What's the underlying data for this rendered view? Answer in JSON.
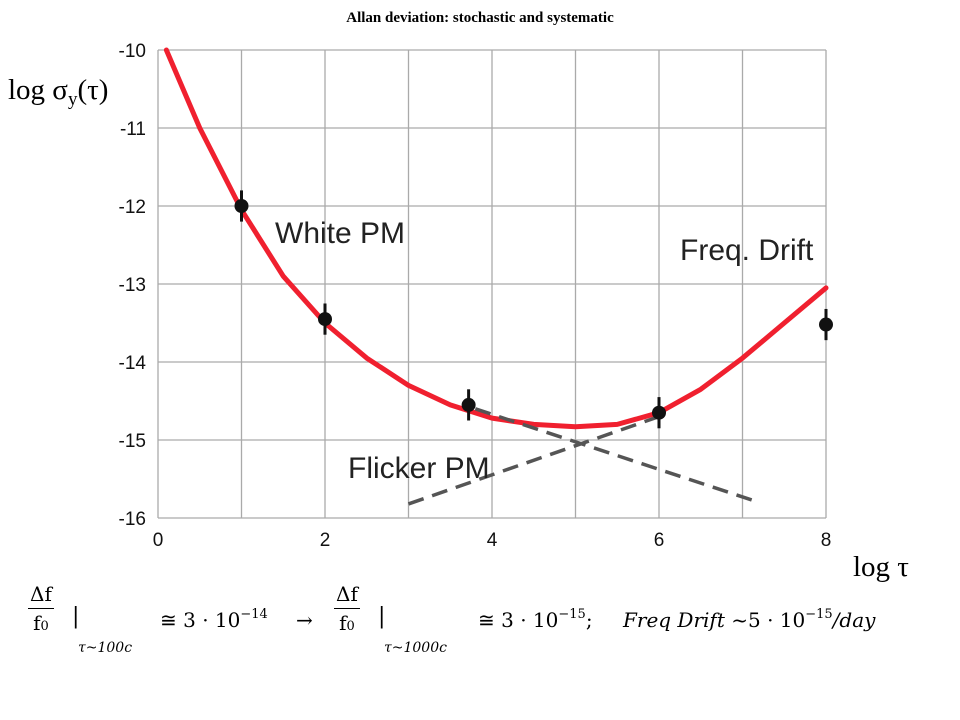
{
  "title": "Allan deviation: stochastic and systematic",
  "axis_labels": {
    "y": {
      "main": "log σ",
      "sub": "y",
      "tail": "(τ)"
    },
    "x": "log τ"
  },
  "annotations": {
    "white_pm": "White PM",
    "freq_drift": "Freq. Drift",
    "flicker_pm": "Flicker PM"
  },
  "formula": {
    "frac_num": "Δf",
    "frac_den": "f",
    "frac_den_sub": "0",
    "bar": "|",
    "eval1": "τ~100c",
    "eval2": "τ~1000c",
    "approx1_base": "≅ 3 · 10",
    "approx1_exp": "−14",
    "arrow": "→",
    "approx2_base": "≅ 3 · 10",
    "approx2_exp": "−15",
    "sep": ";",
    "drift_label": "Freq Drift",
    "drift_base": "~5 · 10",
    "drift_exp": "−15",
    "drift_unit": "/day"
  },
  "chart_data": {
    "type": "line",
    "title": "Allan deviation: stochastic and systematic",
    "xlabel": "log τ",
    "ylabel": "log σy(τ)",
    "xlim": [
      0,
      8
    ],
    "ylim": [
      -16,
      -10
    ],
    "xticks": [
      0,
      2,
      4,
      6,
      8
    ],
    "yticks": [
      -10,
      -11,
      -12,
      -13,
      -14,
      -15,
      -16
    ],
    "grid": true,
    "colors": {
      "fit": "#f0202f",
      "asymptote": "#555555",
      "points": "#111111",
      "grid": "#aaaaaa"
    },
    "series": [
      {
        "style": "solid",
        "x": [
          0.1,
          0.5,
          1.0,
          1.5,
          2.0,
          2.5,
          3.0,
          3.5,
          4.0,
          4.5,
          5.0,
          5.5,
          6.0,
          6.5,
          7.0,
          7.5,
          8.0
        ],
        "y": [
          -10.0,
          -11.0,
          -12.05,
          -12.9,
          -13.5,
          -13.95,
          -14.3,
          -14.55,
          -14.72,
          -14.8,
          -14.83,
          -14.8,
          -14.65,
          -14.35,
          -13.95,
          -13.5,
          -13.05
        ]
      },
      {
        "style": "dashed",
        "x": [
          3.8,
          7.2
        ],
        "y": [
          -14.6,
          -15.8
        ]
      },
      {
        "style": "dashed",
        "x": [
          3.0,
          6.0
        ],
        "y": [
          -15.82,
          -14.7
        ]
      },
      {
        "style": "points",
        "x": [
          1.0,
          2.0,
          3.72,
          6.0,
          8.0
        ],
        "y": [
          -12.0,
          -13.45,
          -14.55,
          -14.65,
          -13.52
        ],
        "err": [
          0.2,
          0.2,
          0.2,
          0.2,
          0.2
        ]
      }
    ]
  }
}
